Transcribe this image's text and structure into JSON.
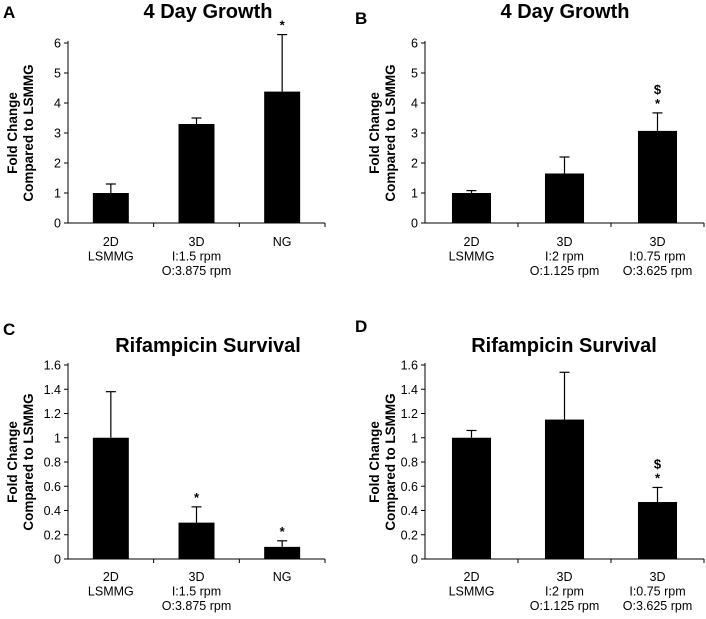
{
  "chart_data": [
    {
      "panel": "A",
      "type": "bar",
      "title": "4 Day Growth",
      "ylabel": [
        "Fold Change",
        "Compared to LSMMG"
      ],
      "ylim": [
        0,
        6
      ],
      "ytick_step": 1,
      "ytick_labels": [
        "0",
        "1",
        "2",
        "3",
        "4",
        "5",
        "6"
      ],
      "categories": [
        [
          "2D",
          "LSMMG"
        ],
        [
          "3D",
          "I:1.5 rpm",
          "O:3.875 rpm"
        ],
        [
          "NG"
        ]
      ],
      "values": [
        1.0,
        3.3,
        4.38
      ],
      "errors": [
        0.3,
        0.2,
        1.9
      ],
      "annotations": [
        [],
        [],
        [
          "*"
        ]
      ]
    },
    {
      "panel": "B",
      "type": "bar",
      "title": "4 Day Growth",
      "ylabel": [
        "Fold Change",
        "Compared to LSMMG"
      ],
      "ylim": [
        0,
        6
      ],
      "ytick_step": 1,
      "ytick_labels": [
        "0",
        "1",
        "2",
        "3",
        "4",
        "5",
        "6"
      ],
      "categories": [
        [
          "2D",
          "LSMMG"
        ],
        [
          "3D",
          "I:2 rpm",
          "O:1.125 rpm"
        ],
        [
          "3D",
          "I:0.75 rpm",
          "O:3.625 rpm"
        ]
      ],
      "values": [
        1.0,
        1.65,
        3.07
      ],
      "errors": [
        0.08,
        0.55,
        0.6
      ],
      "annotations": [
        [],
        [],
        [
          "$",
          "*"
        ]
      ]
    },
    {
      "panel": "C",
      "type": "bar",
      "title": "Rifampicin Survival",
      "ylabel": [
        "Fold Change",
        "Compared to LSMMG"
      ],
      "ylim": [
        0,
        1.6
      ],
      "ytick_step": 0.2,
      "ytick_labels": [
        "0",
        "0.2",
        "0.4",
        "0.6",
        "0.8",
        "1",
        "1.2",
        "1.4",
        "1.6"
      ],
      "categories": [
        [
          "2D",
          "LSMMG"
        ],
        [
          "3D",
          "I:1.5 rpm",
          "O:3.875 rpm"
        ],
        [
          "NG"
        ]
      ],
      "values": [
        1.0,
        0.3,
        0.1
      ],
      "errors": [
        0.38,
        0.13,
        0.05
      ],
      "annotations": [
        [],
        [
          "*"
        ],
        [
          "*"
        ]
      ]
    },
    {
      "panel": "D",
      "type": "bar",
      "title": "Rifampicin Survival",
      "ylabel": [
        "Fold Change",
        "Compared to LSMMG"
      ],
      "ylim": [
        0,
        1.6
      ],
      "ytick_step": 0.2,
      "ytick_labels": [
        "0",
        "0.2",
        "0.4",
        "0.6",
        "0.8",
        "1",
        "1.2",
        "1.4",
        "1.6"
      ],
      "categories": [
        [
          "2D",
          "LSMMG"
        ],
        [
          "3D",
          "I:2 rpm",
          "O:1.125 rpm"
        ],
        [
          "3D",
          "I:0.75 rpm",
          "O:3.625 rpm"
        ]
      ],
      "values": [
        1.0,
        1.15,
        0.47
      ],
      "errors": [
        0.06,
        0.39,
        0.12
      ],
      "annotations": [
        [],
        [],
        [
          "$",
          "*"
        ]
      ]
    }
  ]
}
